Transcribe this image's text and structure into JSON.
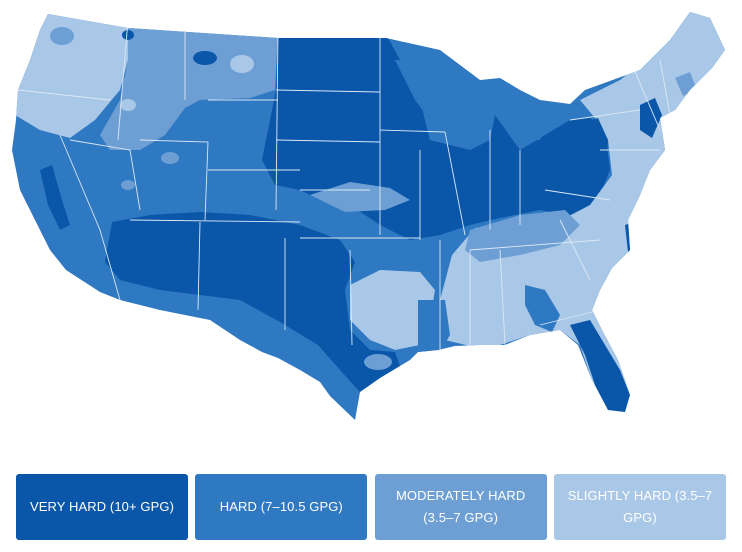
{
  "colors": {
    "very_hard": "#0a56a8",
    "hard": "#2f78c2",
    "moderately_hard": "#6d9fd4",
    "slightly_hard": "#a9c7e6",
    "state_border": "#dbe8f5"
  },
  "legend": [
    {
      "key": "very_hard",
      "label": "VERY HARD (10+ GPG)"
    },
    {
      "key": "hard",
      "label": "HARD (7–10.5 GPG)"
    },
    {
      "key": "moderately_hard",
      "label": "MODERATELY HARD (3.5–7 GPG)"
    },
    {
      "key": "slightly_hard",
      "label": "SLIGHTLY HARD (3.5–7 GPG)"
    }
  ]
}
